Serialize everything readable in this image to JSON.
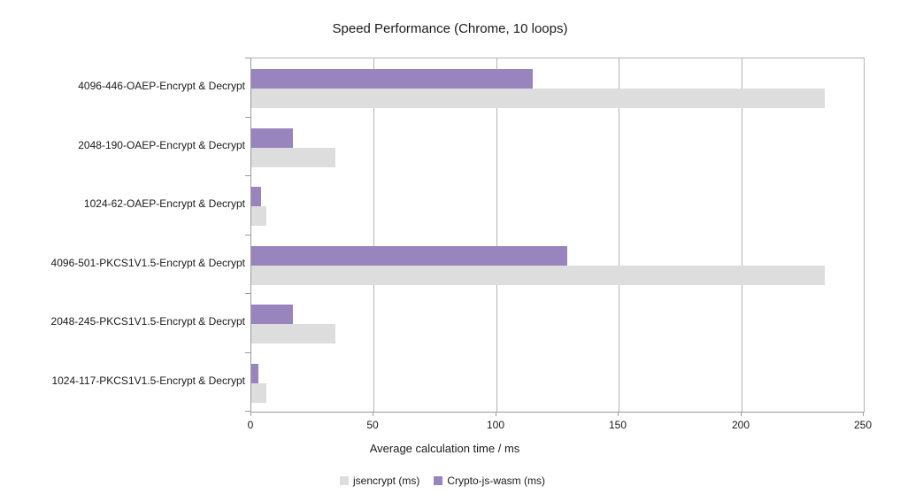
{
  "chart_data": {
    "type": "bar",
    "orientation": "horizontal",
    "title": "Speed Performance (Chrome, 10 loops)",
    "xlabel": "Average calculation time / ms",
    "xlim": [
      0,
      250
    ],
    "xticks": [
      0,
      50,
      100,
      150,
      200,
      250
    ],
    "grid": "vertical-gridlines-only",
    "legend_position": "bottom-center",
    "categories": [
      "4096-446-OAEP-Encrypt & Decrypt",
      "2048-190-OAEP-Encrypt & Decrypt",
      "1024-62-OAEP-Encrypt & Decrypt",
      "4096-501-PKCS1V1.5-Encrypt & Decrypt",
      "2048-245-PKCS1V1.5-Encrypt & Decrypt",
      "1024-117-PKCS1V1.5-Encrypt & Decrypt"
    ],
    "series": [
      {
        "name": "jsencrypt (ms)",
        "color": "#dddddd",
        "values": [
          234,
          34.5,
          6,
          234,
          34.5,
          6
        ]
      },
      {
        "name": "Crypto-js-wasm (ms)",
        "color": "#9885be",
        "values": [
          115,
          17,
          4,
          129,
          17,
          3
        ]
      }
    ]
  },
  "colors": {
    "background": "#ffffff",
    "gridline": "#b3b3b3",
    "axis": "#9b9b9b",
    "text": "#1a1a1a"
  }
}
